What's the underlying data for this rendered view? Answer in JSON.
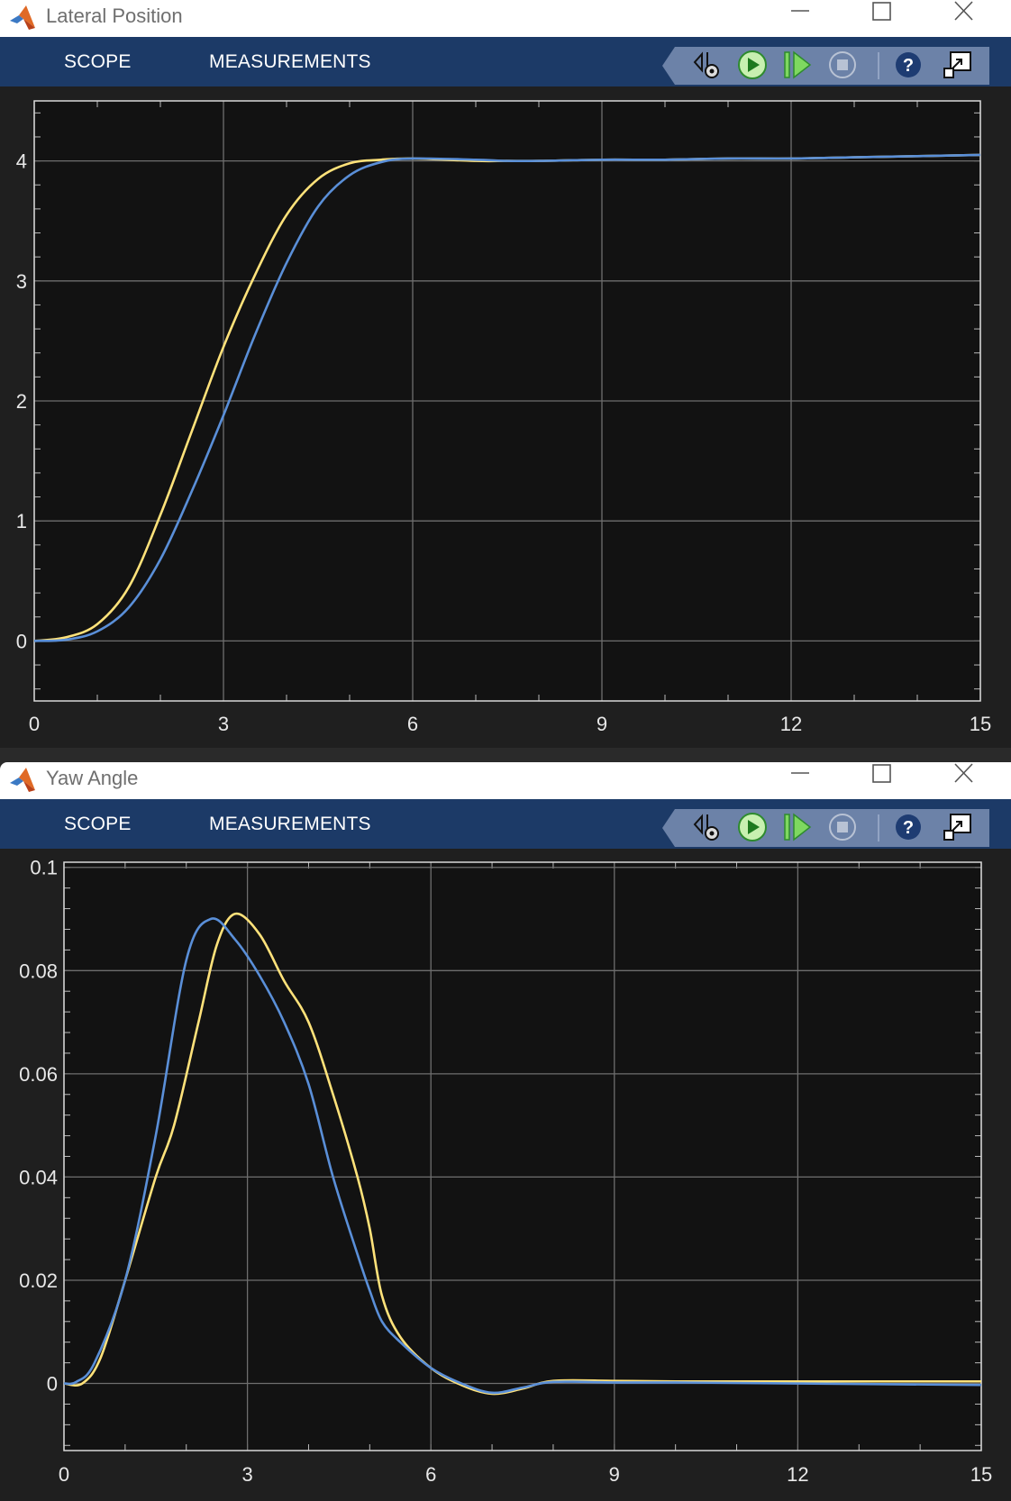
{
  "windows": [
    {
      "title": "Lateral Position",
      "tabs": [
        "SCOPE",
        "MEASUREMENTS"
      ],
      "toolbar": [
        "settings-icon",
        "run-icon",
        "step-forward-icon",
        "stop-icon",
        "help-icon",
        "undock-icon"
      ]
    },
    {
      "title": "Yaw Angle",
      "tabs": [
        "SCOPE",
        "MEASUREMENTS"
      ],
      "toolbar": [
        "settings-icon",
        "run-icon",
        "step-forward-icon",
        "stop-icon",
        "help-icon",
        "undock-icon"
      ]
    }
  ],
  "colors": {
    "plot_bg": "#121212",
    "grid": "#6e6e6e",
    "axes_text": "#e8e8e8",
    "series_yellow": "#ffe27a",
    "series_blue": "#5a8fd8",
    "toolstrip": "#1c3a67"
  },
  "chart_data": [
    {
      "type": "line",
      "title": "",
      "xlabel": "",
      "ylabel": "",
      "xlim": [
        0,
        15
      ],
      "ylim": [
        -0.5,
        4.5
      ],
      "xticks": [
        "0",
        "3",
        "6",
        "9",
        "12",
        "15"
      ],
      "yticks": [
        "0",
        "1",
        "2",
        "3",
        "4"
      ],
      "grid": true,
      "series": [
        {
          "color": "#ffe27a",
          "x": [
            0,
            0.5,
            1.0,
            1.5,
            2.0,
            2.5,
            3.0,
            3.5,
            4.0,
            4.5,
            5.0,
            5.5,
            6.0,
            7.0,
            7.5,
            8.0,
            9.0,
            10.0,
            11.0,
            12.0,
            13.0,
            14.0,
            15.0
          ],
          "y": [
            0,
            0.03,
            0.14,
            0.45,
            1.05,
            1.75,
            2.45,
            3.05,
            3.55,
            3.85,
            3.98,
            4.01,
            4.02,
            4.0,
            4.0,
            4.0,
            4.01,
            4.01,
            4.02,
            4.02,
            4.03,
            4.04,
            4.05
          ]
        },
        {
          "color": "#5a8fd8",
          "x": [
            0,
            0.5,
            1.0,
            1.5,
            2.0,
            2.5,
            3.0,
            3.5,
            4.0,
            4.5,
            5.0,
            5.5,
            6.0,
            7.0,
            7.5,
            8.0,
            9.0,
            10.0,
            11.0,
            12.0,
            13.0,
            14.0,
            15.0
          ],
          "y": [
            0,
            0.01,
            0.08,
            0.28,
            0.68,
            1.25,
            1.88,
            2.55,
            3.15,
            3.62,
            3.88,
            3.99,
            4.02,
            4.01,
            4.0,
            4.0,
            4.01,
            4.01,
            4.02,
            4.02,
            4.03,
            4.04,
            4.05
          ]
        }
      ]
    },
    {
      "type": "line",
      "title": "",
      "xlabel": "",
      "ylabel": "",
      "xlim": [
        0,
        15
      ],
      "ylim": [
        -0.013,
        0.101
      ],
      "xticks": [
        "0",
        "3",
        "6",
        "9",
        "12",
        "15"
      ],
      "yticks": [
        "0",
        "0.02",
        "0.04",
        "0.06",
        "0.08",
        "0.1"
      ],
      "grid": true,
      "series": [
        {
          "color": "#ffe27a",
          "x": [
            0,
            0.3,
            0.6,
            1.0,
            1.5,
            1.8,
            2.2,
            2.5,
            2.8,
            3.2,
            3.6,
            4.0,
            4.4,
            4.8,
            5.0,
            5.2,
            5.5,
            6.0,
            6.5,
            7.0,
            7.5,
            8.0,
            9.0,
            10.0,
            12.0,
            15.0
          ],
          "y": [
            0,
            0.0,
            0.005,
            0.02,
            0.04,
            0.05,
            0.07,
            0.085,
            0.091,
            0.087,
            0.078,
            0.07,
            0.056,
            0.04,
            0.03,
            0.017,
            0.009,
            0.003,
            -0.0003,
            -0.002,
            -0.001,
            0.0005,
            0.0005,
            0.0004,
            0.0004,
            0.0004
          ]
        },
        {
          "color": "#5a8fd8",
          "x": [
            0,
            0.2,
            0.5,
            1.0,
            1.5,
            2.0,
            2.4,
            2.8,
            3.2,
            3.6,
            4.0,
            4.4,
            4.8,
            5.0,
            5.2,
            5.5,
            6.0,
            6.5,
            7.0,
            7.5,
            8.0,
            9.0,
            10.0,
            12.0,
            15.0
          ],
          "y": [
            0,
            0.0003,
            0.004,
            0.02,
            0.048,
            0.082,
            0.09,
            0.086,
            0.079,
            0.07,
            0.058,
            0.04,
            0.025,
            0.018,
            0.012,
            0.008,
            0.003,
            0.0,
            -0.0018,
            -0.0008,
            0.0003,
            0.0002,
            0.0002,
            0.0,
            -0.0003
          ]
        }
      ]
    }
  ]
}
